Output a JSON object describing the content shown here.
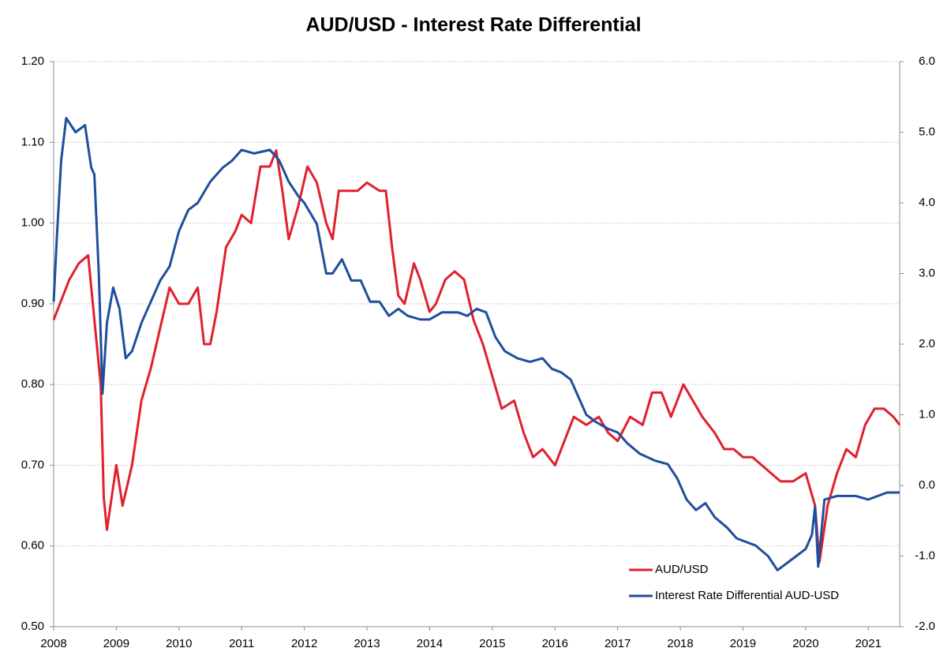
{
  "chart_data": {
    "type": "line",
    "title": "AUD/USD - Interest Rate Differential",
    "xlim": [
      2008,
      2021.5
    ],
    "xticks": [
      2008,
      2009,
      2010,
      2011,
      2012,
      2013,
      2014,
      2015,
      2016,
      2017,
      2018,
      2019,
      2020,
      2021
    ],
    "ylim": [
      0.5,
      1.2
    ],
    "yticks": [
      {
        "value": 0.5,
        "label": "0.50"
      },
      {
        "value": 0.6,
        "label": "0.60"
      },
      {
        "value": 0.7,
        "label": "0.70"
      },
      {
        "value": 0.8,
        "label": "0.80"
      },
      {
        "value": 0.9,
        "label": "0.90"
      },
      {
        "value": 1.0,
        "label": "1.00"
      },
      {
        "value": 1.1,
        "label": "1.10"
      },
      {
        "value": 1.2,
        "label": "1.20"
      }
    ],
    "y2lim": [
      -2,
      6
    ],
    "y2ticks": [
      {
        "value": -2,
        "label": "-2.0"
      },
      {
        "value": -1,
        "label": "-1.0"
      },
      {
        "value": 0,
        "label": "0.0"
      },
      {
        "value": 1,
        "label": "1.0"
      },
      {
        "value": 2,
        "label": "2.0"
      },
      {
        "value": 3,
        "label": "3.0"
      },
      {
        "value": 4,
        "label": "4.0"
      },
      {
        "value": 5,
        "label": "5.0"
      },
      {
        "value": 6,
        "label": "6.0"
      }
    ],
    "grid": true,
    "legend": "lower-right",
    "series": [
      {
        "name": "AUD/USD",
        "color": "#e0202e",
        "axis": "y",
        "x": [
          2008.0,
          2008.1,
          2008.25,
          2008.4,
          2008.55,
          2008.65,
          2008.75,
          2008.8,
          2008.85,
          2009.0,
          2009.1,
          2009.25,
          2009.4,
          2009.55,
          2009.7,
          2009.85,
          2010.0,
          2010.15,
          2010.3,
          2010.4,
          2010.5,
          2010.6,
          2010.75,
          2010.9,
          2011.0,
          2011.15,
          2011.3,
          2011.45,
          2011.55,
          2011.65,
          2011.75,
          2011.9,
          2012.05,
          2012.2,
          2012.35,
          2012.45,
          2012.55,
          2012.7,
          2012.85,
          2013.0,
          2013.2,
          2013.3,
          2013.4,
          2013.5,
          2013.6,
          2013.75,
          2013.85,
          2014.0,
          2014.1,
          2014.25,
          2014.4,
          2014.55,
          2014.7,
          2014.85,
          2015.0,
          2015.15,
          2015.35,
          2015.5,
          2015.65,
          2015.8,
          2016.0,
          2016.15,
          2016.3,
          2016.5,
          2016.7,
          2016.85,
          2017.0,
          2017.2,
          2017.4,
          2017.55,
          2017.7,
          2017.85,
          2018.05,
          2018.2,
          2018.35,
          2018.55,
          2018.7,
          2018.85,
          2019.0,
          2019.15,
          2019.3,
          2019.45,
          2019.6,
          2019.8,
          2020.0,
          2020.15,
          2020.22,
          2020.35,
          2020.5,
          2020.65,
          2020.8,
          2020.95,
          2021.1,
          2021.25,
          2021.4,
          2021.5
        ],
        "values": [
          0.88,
          0.9,
          0.93,
          0.95,
          0.96,
          0.88,
          0.8,
          0.66,
          0.62,
          0.7,
          0.65,
          0.7,
          0.78,
          0.82,
          0.87,
          0.92,
          0.9,
          0.9,
          0.92,
          0.85,
          0.85,
          0.89,
          0.97,
          0.99,
          1.01,
          1.0,
          1.07,
          1.07,
          1.09,
          1.04,
          0.98,
          1.02,
          1.07,
          1.05,
          1.0,
          0.98,
          1.04,
          1.04,
          1.04,
          1.05,
          1.04,
          1.04,
          0.97,
          0.91,
          0.9,
          0.95,
          0.93,
          0.89,
          0.9,
          0.93,
          0.94,
          0.93,
          0.88,
          0.85,
          0.81,
          0.77,
          0.78,
          0.74,
          0.71,
          0.72,
          0.7,
          0.73,
          0.76,
          0.75,
          0.76,
          0.74,
          0.73,
          0.76,
          0.75,
          0.79,
          0.79,
          0.76,
          0.8,
          0.78,
          0.76,
          0.74,
          0.72,
          0.72,
          0.71,
          0.71,
          0.7,
          0.69,
          0.68,
          0.68,
          0.69,
          0.65,
          0.58,
          0.65,
          0.69,
          0.72,
          0.71,
          0.75,
          0.77,
          0.77,
          0.76,
          0.75
        ]
      },
      {
        "name": "Interest Rate Differential AUD-USD",
        "color": "#1f4e9c",
        "axis": "y2",
        "x": [
          2008.0,
          2008.05,
          2008.12,
          2008.2,
          2008.35,
          2008.5,
          2008.6,
          2008.65,
          2008.72,
          2008.78,
          2008.85,
          2008.95,
          2009.05,
          2009.15,
          2009.25,
          2009.4,
          2009.55,
          2009.7,
          2009.85,
          2010.0,
          2010.15,
          2010.3,
          2010.5,
          2010.7,
          2010.85,
          2011.0,
          2011.2,
          2011.45,
          2011.6,
          2011.75,
          2011.9,
          2012.0,
          2012.2,
          2012.35,
          2012.45,
          2012.6,
          2012.75,
          2012.9,
          2013.05,
          2013.2,
          2013.35,
          2013.5,
          2013.65,
          2013.85,
          2014.0,
          2014.2,
          2014.45,
          2014.6,
          2014.75,
          2014.9,
          2015.05,
          2015.2,
          2015.4,
          2015.6,
          2015.8,
          2015.95,
          2016.1,
          2016.25,
          2016.35,
          2016.5,
          2016.65,
          2016.85,
          2017.0,
          2017.15,
          2017.35,
          2017.6,
          2017.8,
          2017.95,
          2018.1,
          2018.25,
          2018.4,
          2018.55,
          2018.75,
          2018.9,
          2019.05,
          2019.2,
          2019.4,
          2019.55,
          2019.7,
          2019.85,
          2020.0,
          2020.1,
          2020.15,
          2020.2,
          2020.3,
          2020.5,
          2020.8,
          2021.0,
          2021.3,
          2021.5
        ],
        "values": [
          2.6,
          3.5,
          4.6,
          5.2,
          5.0,
          5.1,
          4.5,
          4.4,
          3.0,
          1.3,
          2.3,
          2.8,
          2.5,
          1.8,
          1.9,
          2.3,
          2.6,
          2.9,
          3.1,
          3.6,
          3.9,
          4.0,
          4.3,
          4.5,
          4.6,
          4.75,
          4.7,
          4.75,
          4.6,
          4.3,
          4.1,
          4.0,
          3.7,
          3.0,
          3.0,
          3.2,
          2.9,
          2.9,
          2.6,
          2.6,
          2.4,
          2.5,
          2.4,
          2.35,
          2.35,
          2.45,
          2.45,
          2.4,
          2.5,
          2.45,
          2.1,
          1.9,
          1.8,
          1.75,
          1.8,
          1.65,
          1.6,
          1.5,
          1.3,
          1.0,
          0.9,
          0.8,
          0.75,
          0.6,
          0.45,
          0.35,
          0.3,
          0.1,
          -0.2,
          -0.35,
          -0.25,
          -0.45,
          -0.6,
          -0.75,
          -0.8,
          -0.85,
          -1.0,
          -1.2,
          -1.1,
          -1.0,
          -0.9,
          -0.7,
          -0.3,
          -1.15,
          -0.2,
          -0.15,
          -0.15,
          -0.2,
          -0.1,
          -0.1
        ]
      }
    ]
  }
}
